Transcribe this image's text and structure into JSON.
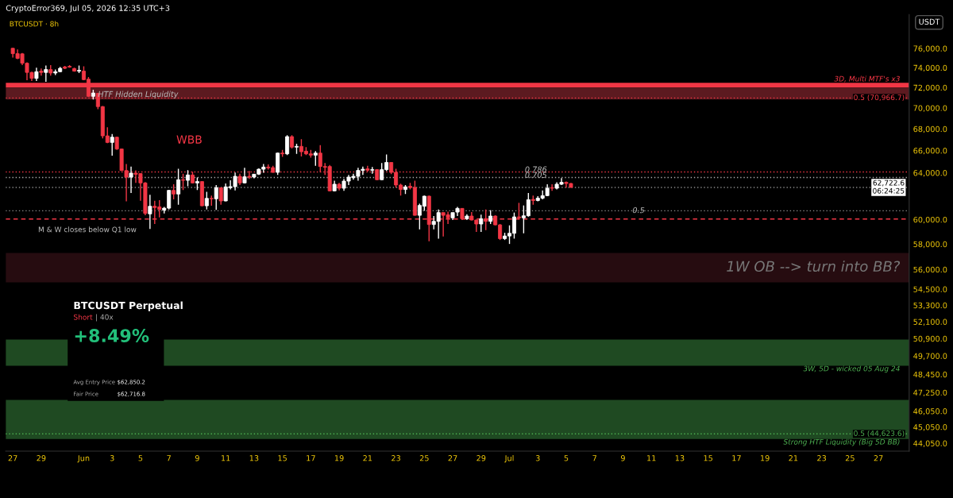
{
  "chart_data": {
    "type": "candlestick",
    "title": "BTCUSDT · 8h",
    "subtitle": "CryptoError369, Jul 05, 2026 12:35 UTC+3",
    "ylabel": "USDT",
    "x": [
      "2026-05-27T00:00",
      "2026-05-27T08:00",
      "2026-05-27T16:00",
      "2026-05-28T00:00",
      "2026-05-28T08:00",
      "2026-05-28T16:00",
      "2026-05-29T00:00",
      "2026-05-29T08:00",
      "2026-05-29T16:00",
      "2026-05-30T00:00",
      "2026-05-30T08:00",
      "2026-05-30T16:00",
      "2026-05-31T00:00",
      "2026-05-31T08:00",
      "2026-05-31T16:00",
      "2026-06-01T00:00",
      "2026-06-01T08:00",
      "2026-06-01T16:00",
      "2026-06-02T00:00",
      "2026-06-02T08:00",
      "2026-06-02T16:00",
      "2026-06-03T00:00",
      "2026-06-03T08:00",
      "2026-06-03T16:00",
      "2026-06-04T00:00",
      "2026-06-04T08:00",
      "2026-06-04T16:00",
      "2026-06-05T00:00",
      "2026-06-05T08:00",
      "2026-06-05T16:00",
      "2026-06-06T00:00",
      "2026-06-06T08:00",
      "2026-06-06T16:00",
      "2026-06-07T00:00",
      "2026-06-07T08:00",
      "2026-06-07T16:00",
      "2026-06-08T00:00",
      "2026-06-08T08:00",
      "2026-06-08T16:00",
      "2026-06-09T00:00",
      "2026-06-09T08:00",
      "2026-06-09T16:00",
      "2026-06-10T00:00",
      "2026-06-10T08:00",
      "2026-06-10T16:00",
      "2026-06-11T00:00",
      "2026-06-11T08:00",
      "2026-06-11T16:00",
      "2026-06-12T00:00",
      "2026-06-12T08:00",
      "2026-06-12T16:00",
      "2026-06-13T00:00",
      "2026-06-13T08:00",
      "2026-06-13T16:00",
      "2026-06-14T00:00",
      "2026-06-14T08:00",
      "2026-06-14T16:00",
      "2026-06-15T00:00",
      "2026-06-15T08:00",
      "2026-06-15T16:00",
      "2026-06-16T00:00",
      "2026-06-16T08:00",
      "2026-06-16T16:00",
      "2026-06-17T00:00",
      "2026-06-17T08:00",
      "2026-06-17T16:00",
      "2026-06-18T00:00",
      "2026-06-18T08:00",
      "2026-06-18T16:00",
      "2026-06-19T00:00",
      "2026-06-19T08:00",
      "2026-06-19T16:00",
      "2026-06-20T00:00",
      "2026-06-20T08:00",
      "2026-06-20T16:00",
      "2026-06-21T00:00",
      "2026-06-21T08:00",
      "2026-06-21T16:00",
      "2026-06-22T00:00",
      "2026-06-22T08:00",
      "2026-06-22T16:00",
      "2026-06-23T00:00",
      "2026-06-23T08:00",
      "2026-06-23T16:00",
      "2026-06-24T00:00",
      "2026-06-24T08:00",
      "2026-06-24T16:00",
      "2026-06-25T00:00",
      "2026-06-25T08:00",
      "2026-06-25T16:00",
      "2026-06-26T00:00",
      "2026-06-26T08:00",
      "2026-06-26T16:00",
      "2026-06-27T00:00",
      "2026-06-27T08:00",
      "2026-06-27T16:00",
      "2026-06-28T00:00",
      "2026-06-28T08:00",
      "2026-06-28T16:00",
      "2026-06-29T00:00",
      "2026-06-29T08:00",
      "2026-06-29T16:00",
      "2026-06-30T00:00",
      "2026-06-30T08:00",
      "2026-06-30T16:00",
      "2026-07-01T00:00",
      "2026-07-01T08:00",
      "2026-07-01T16:00",
      "2026-07-02T00:00",
      "2026-07-02T08:00",
      "2026-07-02T16:00",
      "2026-07-03T00:00",
      "2026-07-03T08:00",
      "2026-07-03T16:00",
      "2026-07-04T00:00",
      "2026-07-04T08:00",
      "2026-07-04T16:00",
      "2026-07-05T00:00",
      "2026-07-05T08:00"
    ],
    "ohlc": [
      [
        76010,
        76060,
        75050,
        75450
      ],
      [
        75450,
        75900,
        74880,
        74960
      ],
      [
        75430,
        75510,
        74270,
        74460
      ],
      [
        74460,
        74540,
        72730,
        73520
      ],
      [
        73520,
        73590,
        72650,
        72920
      ],
      [
        72920,
        74000,
        72650,
        73590
      ],
      [
        73650,
        73920,
        73190,
        73520
      ],
      [
        73520,
        74220,
        72570,
        73810
      ],
      [
        73810,
        74270,
        73190,
        73460
      ],
      [
        73460,
        73810,
        73250,
        73590
      ],
      [
        73590,
        74080,
        73540,
        73940
      ],
      [
        74080,
        74190,
        73860,
        73940
      ],
      [
        74140,
        74270,
        74000,
        74060
      ],
      [
        73920,
        74000,
        73590,
        73650
      ],
      [
        73650,
        74220,
        73460,
        73730
      ],
      [
        73650,
        74140,
        72730,
        72790
      ],
      [
        72840,
        73050,
        71080,
        71130
      ],
      [
        71130,
        71780,
        70820,
        71460
      ],
      [
        71420,
        71460,
        69870,
        70130
      ],
      [
        70130,
        70180,
        67110,
        67350
      ],
      [
        67350,
        68150,
        66670,
        66740
      ],
      [
        66740,
        67530,
        65530,
        67230
      ],
      [
        67230,
        67280,
        66060,
        66140
      ],
      [
        66140,
        66180,
        64160,
        64200
      ],
      [
        64200,
        64790,
        61520,
        63620
      ],
      [
        63620,
        64560,
        62240,
        63970
      ],
      [
        63970,
        64210,
        63110,
        63870
      ],
      [
        63930,
        63970,
        61580,
        63110
      ],
      [
        63110,
        63180,
        60350,
        60510
      ],
      [
        60470,
        62080,
        59230,
        61110
      ],
      [
        61110,
        61580,
        59630,
        61000
      ],
      [
        61060,
        61620,
        60180,
        60840
      ],
      [
        60790,
        61060,
        60510,
        60950
      ],
      [
        60950,
        62510,
        60840,
        62470
      ],
      [
        62470,
        63000,
        61690,
        62150
      ],
      [
        62150,
        64350,
        61240,
        63390
      ],
      [
        63390,
        63920,
        62490,
        63340
      ],
      [
        63340,
        64230,
        62830,
        63810
      ],
      [
        63810,
        64090,
        63060,
        63110
      ],
      [
        63110,
        63580,
        62490,
        63230
      ],
      [
        63230,
        63250,
        61110,
        61150
      ],
      [
        61150,
        62350,
        60840,
        61780
      ],
      [
        61780,
        62010,
        61150,
        61740
      ],
      [
        61740,
        62930,
        60800,
        62700
      ],
      [
        62700,
        62700,
        61240,
        61560
      ],
      [
        61560,
        63060,
        61520,
        62770
      ],
      [
        62700,
        63340,
        62540,
        62790
      ],
      [
        62790,
        64020,
        62470,
        63690
      ],
      [
        63690,
        63920,
        62930,
        63110
      ],
      [
        63110,
        64440,
        63060,
        63650
      ],
      [
        63690,
        64160,
        63460,
        63620
      ],
      [
        63620,
        63880,
        63510,
        63880
      ],
      [
        63880,
        64390,
        63810,
        64320
      ],
      [
        64320,
        64790,
        64000,
        64510
      ],
      [
        64510,
        64740,
        64280,
        64440
      ],
      [
        64460,
        64630,
        64000,
        64040
      ],
      [
        64040,
        65820,
        63810,
        65770
      ],
      [
        65770,
        66060,
        65420,
        65700
      ],
      [
        65700,
        67410,
        65580,
        67280
      ],
      [
        67280,
        67410,
        66190,
        66310
      ],
      [
        66310,
        66620,
        65700,
        66380
      ],
      [
        66380,
        67040,
        65460,
        65890
      ],
      [
        65940,
        66310,
        65580,
        65700
      ],
      [
        65700,
        66060,
        65350,
        65580
      ],
      [
        65580,
        65940,
        64630,
        65770
      ],
      [
        65770,
        66500,
        64040,
        64560
      ],
      [
        64560,
        64870,
        63810,
        64490
      ],
      [
        64560,
        64700,
        62370,
        62420
      ],
      [
        62420,
        63300,
        62370,
        63000
      ],
      [
        63000,
        63110,
        62470,
        62650
      ],
      [
        62650,
        63460,
        62420,
        63270
      ],
      [
        63270,
        63810,
        62930,
        63620
      ],
      [
        63570,
        63920,
        63390,
        63690
      ],
      [
        63690,
        64440,
        63300,
        64210
      ],
      [
        64210,
        64560,
        63810,
        64320
      ],
      [
        64350,
        64630,
        64090,
        64230
      ],
      [
        64230,
        64510,
        63920,
        64280
      ],
      [
        64280,
        64320,
        63340,
        63390
      ],
      [
        63390,
        64870,
        63340,
        64280
      ],
      [
        64280,
        65650,
        64160,
        64920
      ],
      [
        64920,
        64940,
        63880,
        64040
      ],
      [
        64040,
        64350,
        62700,
        62930
      ],
      [
        62930,
        63040,
        62010,
        62540
      ],
      [
        62540,
        62930,
        62150,
        62770
      ],
      [
        62820,
        63110,
        62540,
        62700
      ],
      [
        62720,
        63300,
        60330,
        60350
      ],
      [
        60350,
        61330,
        59190,
        61180
      ],
      [
        61110,
        62010,
        60730,
        61970
      ],
      [
        61970,
        62010,
        58230,
        59590
      ],
      [
        59590,
        60290,
        59190,
        59850
      ],
      [
        59850,
        60840,
        58440,
        60580
      ],
      [
        60580,
        60580,
        58610,
        60350
      ],
      [
        60400,
        60660,
        59630,
        60140
      ],
      [
        60140,
        60580,
        59960,
        60580
      ],
      [
        60620,
        61060,
        60290,
        60930
      ],
      [
        60930,
        60950,
        59960,
        60070
      ],
      [
        60070,
        60440,
        59960,
        60290
      ],
      [
        60290,
        60620,
        59920,
        59960
      ],
      [
        59960,
        60000,
        58980,
        59630
      ],
      [
        59630,
        60400,
        58980,
        60070
      ],
      [
        60070,
        60840,
        59130,
        59850
      ],
      [
        59850,
        60780,
        59630,
        60290
      ],
      [
        60290,
        60350,
        59520,
        59560
      ],
      [
        59560,
        59630,
        58330,
        58440
      ],
      [
        58440,
        58910,
        58330,
        58650
      ],
      [
        58650,
        59520,
        58010,
        58870
      ],
      [
        58870,
        60580,
        58440,
        60220
      ],
      [
        60220,
        61400,
        60000,
        60140
      ],
      [
        60140,
        61180,
        58870,
        60310
      ],
      [
        60310,
        62240,
        60240,
        61670
      ],
      [
        61690,
        62010,
        61240,
        61600
      ],
      [
        61600,
        61970,
        61520,
        61800
      ],
      [
        61800,
        62470,
        61690,
        62010
      ],
      [
        62010,
        63000,
        61970,
        62650
      ],
      [
        62700,
        63000,
        62420,
        62650
      ],
      [
        62650,
        63160,
        62540,
        63000
      ],
      [
        63000,
        63530,
        62930,
        63160
      ],
      [
        63160,
        63230,
        62700,
        63060
      ],
      [
        63060,
        63110,
        62700,
        62722.6
      ]
    ],
    "colors": [
      "#f23645",
      "#f23645",
      "#f23645",
      "#f23645",
      "#f23645",
      "#ffffff",
      "#f23645",
      "#ffffff",
      "#f23645",
      "#ffffff",
      "#ffffff",
      "#f23645",
      "#f23645",
      "#f23645",
      "#ffffff",
      "#f23645",
      "#f23645",
      "#ffffff",
      "#f23645",
      "#f23645",
      "#f23645",
      "#ffffff",
      "#f23645",
      "#f23645",
      "#f23645",
      "#ffffff",
      "#f23645",
      "#f23645",
      "#f23645",
      "#ffffff",
      "#f23645",
      "#f23645",
      "#ffffff",
      "#ffffff",
      "#f23645",
      "#ffffff",
      "#f23645",
      "#ffffff",
      "#f23645",
      "#ffffff",
      "#f23645",
      "#ffffff",
      "#f23645",
      "#ffffff",
      "#f23645",
      "#ffffff",
      "#ffffff",
      "#ffffff",
      "#f23645",
      "#ffffff",
      "#f23645",
      "#ffffff",
      "#ffffff",
      "#ffffff",
      "#f23645",
      "#f23645",
      "#ffffff",
      "#f23645",
      "#ffffff",
      "#f23645",
      "#ffffff",
      "#f23645",
      "#f23645",
      "#f23645",
      "#ffffff",
      "#f23645",
      "#f23645",
      "#f23645",
      "#ffffff",
      "#f23645",
      "#ffffff",
      "#ffffff",
      "#ffffff",
      "#ffffff",
      "#ffffff",
      "#f23645",
      "#ffffff",
      "#f23645",
      "#ffffff",
      "#ffffff",
      "#f23645",
      "#f23645",
      "#f23645",
      "#ffffff",
      "#f23645",
      "#f23645",
      "#ffffff",
      "#ffffff",
      "#f23645",
      "#ffffff",
      "#ffffff",
      "#f23645",
      "#f23645",
      "#ffffff",
      "#ffffff",
      "#f23645",
      "#ffffff",
      "#f23645",
      "#f23645",
      "#ffffff",
      "#f23645",
      "#ffffff",
      "#f23645",
      "#f23645",
      "#ffffff",
      "#ffffff",
      "#ffffff",
      "#f23645",
      "#ffffff",
      "#ffffff",
      "#f23645",
      "#ffffff",
      "#ffffff",
      "#ffffff",
      "#f23645",
      "#ffffff",
      "#ffffff",
      "#f23645",
      "#f23645"
    ],
    "log": "y",
    "xlim": [
      "2026-05-26T12:00",
      "2026-07-29T04:00"
    ],
    "xticks": [
      {
        "value": "2026-05-27",
        "label": "27"
      },
      {
        "value": "2026-05-29",
        "label": "29"
      },
      {
        "value": "2026-06-01",
        "label": "Jun"
      },
      {
        "value": "2026-06-03",
        "label": "3"
      },
      {
        "value": "2026-06-05",
        "label": "5"
      },
      {
        "value": "2026-06-07",
        "label": "7"
      },
      {
        "value": "2026-06-09",
        "label": "9"
      },
      {
        "value": "2026-06-11",
        "label": "11"
      },
      {
        "value": "2026-06-13",
        "label": "13"
      },
      {
        "value": "2026-06-15",
        "label": "15"
      },
      {
        "value": "2026-06-17",
        "label": "17"
      },
      {
        "value": "2026-06-19",
        "label": "19"
      },
      {
        "value": "2026-06-21",
        "label": "21"
      },
      {
        "value": "2026-06-23",
        "label": "23"
      },
      {
        "value": "2026-06-25",
        "label": "25"
      },
      {
        "value": "2026-06-27",
        "label": "27"
      },
      {
        "value": "2026-06-29",
        "label": "29"
      },
      {
        "value": "2026-07-01",
        "label": "Jul"
      },
      {
        "value": "2026-07-03",
        "label": "3"
      },
      {
        "value": "2026-07-05",
        "label": "5"
      },
      {
        "value": "2026-07-07",
        "label": "7"
      },
      {
        "value": "2026-07-09",
        "label": "9"
      },
      {
        "value": "2026-07-11",
        "label": "11"
      },
      {
        "value": "2026-07-13",
        "label": "13"
      },
      {
        "value": "2026-07-15",
        "label": "15"
      },
      {
        "value": "2026-07-17",
        "label": "17"
      },
      {
        "value": "2026-07-19",
        "label": "19"
      },
      {
        "value": "2026-07-21",
        "label": "21"
      },
      {
        "value": "2026-07-23",
        "label": "23"
      },
      {
        "value": "2026-07-25",
        "label": "25"
      },
      {
        "value": "2026-07-27",
        "label": "27"
      }
    ],
    "ylim": [
      43570,
      79650
    ],
    "yticks": [
      {
        "value": 76000,
        "label": "76,000.0"
      },
      {
        "value": 74000,
        "label": "74,000.0"
      },
      {
        "value": 72000,
        "label": "72,000.0"
      },
      {
        "value": 70000,
        "label": "70,000.0"
      },
      {
        "value": 68000,
        "label": "68,000.0"
      },
      {
        "value": 66000,
        "label": "66,000.0"
      },
      {
        "value": 64000,
        "label": "64,000.0"
      },
      {
        "value": 60000,
        "label": "60,000.0"
      },
      {
        "value": 58000,
        "label": "58,000.0"
      },
      {
        "value": 56000,
        "label": "56,000.0"
      },
      {
        "value": 54500,
        "label": "54,500.0"
      },
      {
        "value": 53300,
        "label": "53,300.0"
      },
      {
        "value": 52100,
        "label": "52,100.0"
      },
      {
        "value": 50900,
        "label": "50,900.0"
      },
      {
        "value": 49700,
        "label": "49,700.0"
      },
      {
        "value": 48450,
        "label": "48,450.0"
      },
      {
        "value": 47250,
        "label": "47,250.0"
      },
      {
        "value": 46050,
        "label": "46,050.0"
      },
      {
        "value": 45050,
        "label": "45,050.0"
      },
      {
        "value": 44050,
        "label": "44,050.0"
      }
    ],
    "grid": false,
    "bands": [
      {
        "axis": "y",
        "from": 71995,
        "to": 72470,
        "color": "#f23645",
        "label": "3D, Multi MTF's x3"
      },
      {
        "axis": "y",
        "from": 70830,
        "to": 71995,
        "color": "#5c1a20"
      },
      {
        "axis": "y",
        "from": 55020,
        "to": 57300,
        "color": "#260c10",
        "label": "1W OB --> turn into BB?"
      },
      {
        "axis": "y",
        "from": 49030,
        "to": 50840,
        "color": "#1f4a22",
        "label": "3W, 5D - wicked 05 Aug 24"
      },
      {
        "axis": "y",
        "from": 44310,
        "to": 46770,
        "color": "#1f4a22",
        "label": "Strong HTF Liquidity (Big 5D BB)"
      }
    ],
    "ref_lines": [
      {
        "axis": "y",
        "value": 70966.7,
        "label": "0.5 (70,966.7)",
        "color": "#f23645",
        "line_style": "dotted"
      },
      {
        "axis": "y",
        "value": 64080,
        "color": "#f23645",
        "line_style": "dotted"
      },
      {
        "axis": "y",
        "value": 63590,
        "color": "#aaaaaa",
        "line_style": "dotted"
      },
      {
        "axis": "y",
        "value": 62722.6,
        "label": "62,722.6\n06:24:25",
        "color": "#888888",
        "line_style": "dotted"
      },
      {
        "axis": "y",
        "value": 60730,
        "color": "#888888",
        "line_style": "dotted"
      },
      {
        "axis": "y",
        "value": 60040,
        "color": "#f23645",
        "line_style": "dashed"
      },
      {
        "axis": "y",
        "value": 44623.6,
        "label": "0.5 (44,623.6)",
        "color": "#4caf50",
        "line_style": "dotted"
      }
    ],
    "annotations": [
      {
        "text": "HTF Hidden Liquidity",
        "x": "2026-06-02",
        "y": 71290
      },
      {
        "text": "0.786",
        "x": "2026-07-02T02:00",
        "y": 64250
      },
      {
        "text": "0.705",
        "x": "2026-07-02T02:00",
        "y": 63750
      },
      {
        "text": "0.5",
        "x": "2026-07-09T16:00",
        "y": 60730
      },
      "WBB",
      "M & W closes below Q1 low",
      "BTCUSDT Perpetual",
      "Short",
      "| 40x",
      "+8.49%",
      "Avg Entry Price",
      "$62,850.2",
      "Fair Price",
      "$62,716.8"
    ]
  }
}
